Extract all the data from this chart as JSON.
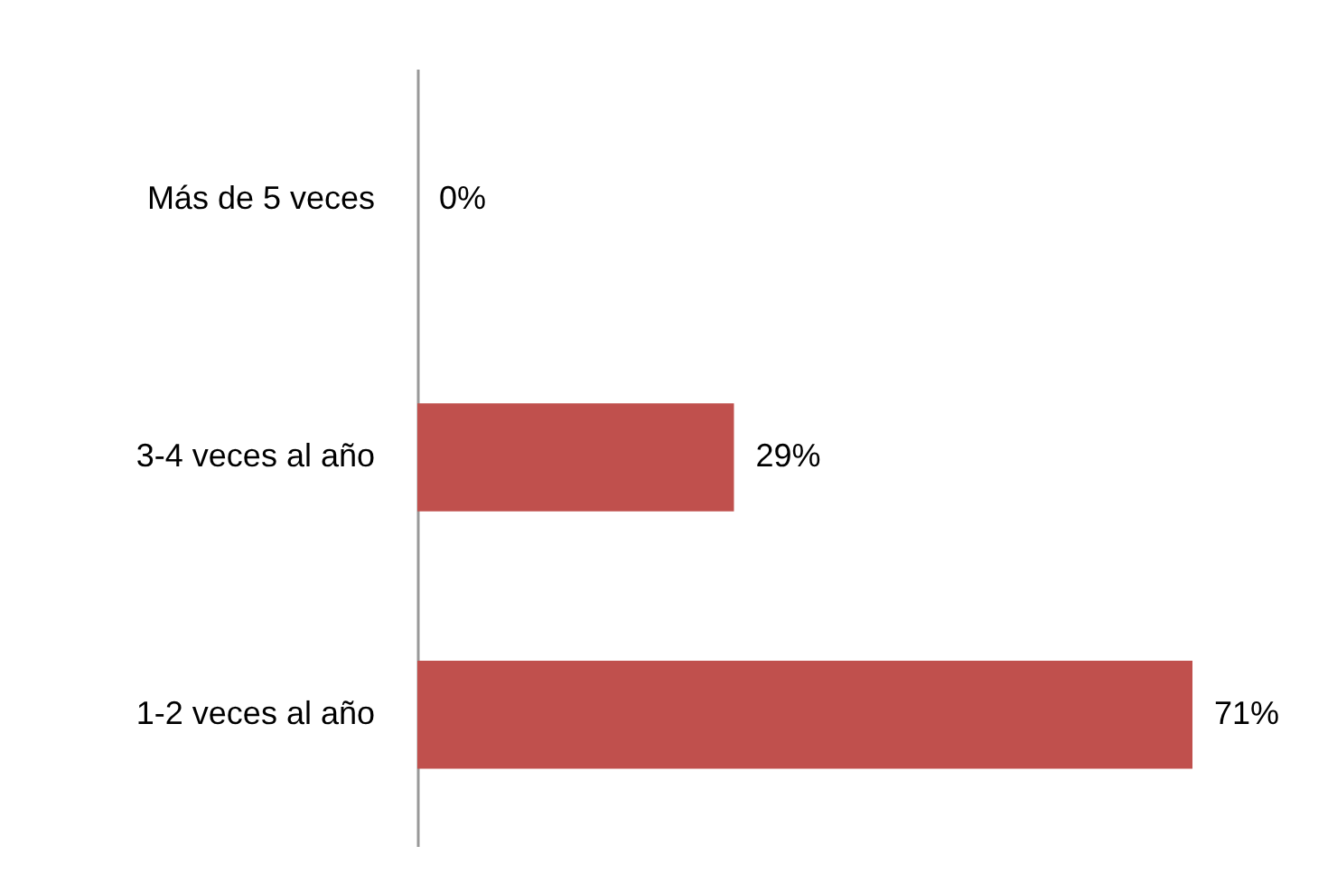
{
  "chart_data": {
    "type": "bar",
    "orientation": "horizontal",
    "categories": [
      "Más de 5 veces",
      "3-4 veces al año",
      "1-2 veces al año"
    ],
    "values": [
      0,
      29,
      71
    ],
    "value_labels": [
      "0%",
      "29%",
      "71%"
    ],
    "color": "#c0504d"
  }
}
